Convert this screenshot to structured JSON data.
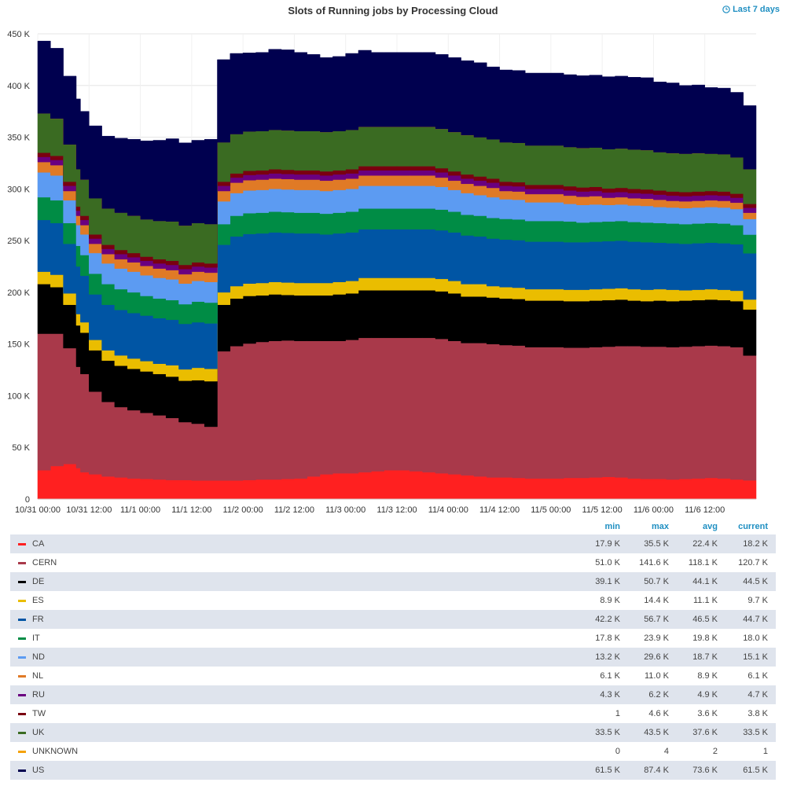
{
  "chart_data": {
    "type": "area",
    "stacked": true,
    "title": "Slots of Running jobs by Processing Cloud",
    "time_range_label": "Last 7 days",
    "x_ticks": [
      "10/31 00:00",
      "10/31 12:00",
      "11/1 00:00",
      "11/1 12:00",
      "11/2 00:00",
      "11/2 12:00",
      "11/3 00:00",
      "11/3 12:00",
      "11/4 00:00",
      "11/4 12:00",
      "11/5 00:00",
      "11/5 12:00",
      "11/6 00:00",
      "11/6 12:00"
    ],
    "y_ticks": [
      "0",
      "50 K",
      "100 K",
      "150 K",
      "200 K",
      "250 K",
      "300 K",
      "350 K",
      "400 K",
      "450 K"
    ],
    "ylim": [
      0,
      450000
    ],
    "grid": true,
    "legend_placement": "bottom-table",
    "x_hours": [
      0,
      3,
      6,
      9,
      10,
      12,
      15,
      18,
      21,
      24,
      27,
      30,
      33,
      36,
      39,
      42,
      45,
      48,
      51,
      54,
      57,
      60,
      63,
      66,
      69,
      72,
      75,
      78,
      81,
      84,
      87,
      90,
      93,
      96,
      99,
      102,
      105,
      108,
      111,
      114,
      117,
      120,
      123,
      126,
      129,
      132,
      135,
      138,
      141,
      144,
      147,
      150,
      153,
      156,
      159,
      162,
      165
    ],
    "series": [
      {
        "name": "CA",
        "color": "#ff2020",
        "values": [
          28000,
          32000,
          34000,
          30000,
          26000,
          24000,
          22000,
          21000,
          20000,
          19500,
          19000,
          18500,
          18500,
          18000,
          18000,
          18000,
          18000,
          18500,
          19000,
          19000,
          19500,
          20000,
          22000,
          24000,
          25000,
          25000,
          26000,
          27000,
          28000,
          28000,
          27000,
          26000,
          25000,
          24000,
          23000,
          22000,
          21000,
          21000,
          20500,
          20000,
          20000,
          20000,
          20500,
          20500,
          21000,
          21500,
          21000,
          20000,
          19500,
          19500,
          19000,
          19500,
          20000,
          20500,
          20000,
          19000,
          18200
        ]
      },
      {
        "name": "CERN",
        "color": "#a9394a",
        "values": [
          132000,
          128000,
          112000,
          98000,
          95000,
          80000,
          72000,
          68000,
          66000,
          64000,
          62000,
          60000,
          56000,
          55000,
          52000,
          125000,
          130000,
          132000,
          133000,
          134000,
          134000,
          133000,
          131000,
          129000,
          128000,
          129000,
          130000,
          129000,
          128000,
          128000,
          129000,
          130000,
          130000,
          129000,
          128000,
          129000,
          129000,
          128000,
          128000,
          127000,
          127000,
          127000,
          126000,
          126000,
          126000,
          126000,
          127000,
          128000,
          128000,
          128000,
          128000,
          128000,
          128000,
          128000,
          128000,
          128000,
          120700
        ]
      },
      {
        "name": "DE",
        "color": "#000000",
        "values": [
          48000,
          45000,
          42000,
          40000,
          40000,
          40000,
          40000,
          40000,
          40000,
          40000,
          40000,
          40000,
          40000,
          42000,
          44000,
          45000,
          46000,
          46000,
          45000,
          45000,
          44000,
          44000,
          44000,
          44000,
          45000,
          45000,
          46000,
          46000,
          46000,
          46000,
          46000,
          46000,
          46000,
          46000,
          45000,
          45000,
          45000,
          45000,
          45000,
          45000,
          45000,
          45000,
          45000,
          45000,
          45000,
          45000,
          45000,
          44000,
          44000,
          44500,
          44500,
          44500,
          44500,
          44500,
          44500,
          44500,
          44500
        ]
      },
      {
        "name": "ES",
        "color": "#eabd00",
        "values": [
          12000,
          12000,
          11000,
          11000,
          10000,
          10000,
          10000,
          10000,
          10000,
          10000,
          10000,
          11000,
          11000,
          12000,
          12000,
          12000,
          12000,
          12000,
          12000,
          12000,
          12000,
          12000,
          12000,
          12000,
          12000,
          12000,
          12000,
          12000,
          12000,
          12000,
          12000,
          12000,
          12000,
          12000,
          12000,
          12000,
          11000,
          11000,
          11000,
          11000,
          11000,
          11000,
          11000,
          11000,
          11000,
          11000,
          11000,
          11000,
          11000,
          11000,
          11000,
          10000,
          10000,
          10000,
          10000,
          10000,
          9700
        ]
      },
      {
        "name": "FR",
        "color": "#0055a4",
        "values": [
          50000,
          50000,
          48000,
          46000,
          45000,
          44000,
          44000,
          44000,
          44000,
          44000,
          44000,
          44000,
          44000,
          44000,
          44000,
          46000,
          48000,
          48000,
          48000,
          48000,
          48000,
          48000,
          48000,
          47000,
          47000,
          47000,
          47000,
          47000,
          47000,
          47000,
          47000,
          47000,
          47000,
          47000,
          47000,
          46000,
          46000,
          46000,
          46000,
          46000,
          46000,
          46000,
          46000,
          46000,
          46000,
          46000,
          46000,
          46000,
          46000,
          45000,
          45000,
          45000,
          45000,
          45000,
          45000,
          45000,
          44700
        ]
      },
      {
        "name": "IT",
        "color": "#008c45",
        "values": [
          22000,
          22000,
          20000,
          20000,
          20000,
          20000,
          20000,
          20000,
          20000,
          19000,
          19000,
          19000,
          19000,
          20000,
          20000,
          20000,
          20000,
          20000,
          20000,
          20000,
          20000,
          20000,
          20000,
          20000,
          20000,
          20000,
          20000,
          20000,
          20000,
          20000,
          20000,
          20000,
          20000,
          20000,
          20000,
          20000,
          20000,
          20000,
          20000,
          20000,
          20000,
          20000,
          20000,
          19000,
          19000,
          19000,
          19000,
          19000,
          19000,
          19000,
          19000,
          19000,
          19000,
          19000,
          19000,
          18500,
          18000
        ]
      },
      {
        "name": "ND",
        "color": "#5c9bf2",
        "values": [
          24000,
          24000,
          22000,
          20000,
          20000,
          20000,
          20000,
          20000,
          20000,
          20000,
          20000,
          20000,
          20000,
          20000,
          20000,
          22000,
          22000,
          22000,
          22000,
          22000,
          22000,
          22000,
          22000,
          22000,
          22000,
          22000,
          22000,
          22000,
          22000,
          22000,
          22000,
          22000,
          22000,
          21000,
          21000,
          20000,
          20000,
          19000,
          19000,
          18000,
          18000,
          18000,
          17000,
          17000,
          17000,
          16000,
          16000,
          16000,
          16000,
          15500,
          15500,
          15500,
          15500,
          15500,
          15500,
          15500,
          15100
        ]
      },
      {
        "name": "NL",
        "color": "#e07a26",
        "values": [
          10000,
          10000,
          9000,
          9000,
          9000,
          9000,
          9000,
          9000,
          9000,
          9000,
          9000,
          9000,
          9000,
          9000,
          9000,
          10000,
          10000,
          10000,
          10000,
          10000,
          10000,
          10000,
          10000,
          10000,
          10000,
          10000,
          10000,
          10000,
          10000,
          10000,
          10000,
          10000,
          9000,
          9000,
          9000,
          9000,
          9000,
          8000,
          8000,
          8000,
          8000,
          8000,
          8000,
          8000,
          8000,
          7000,
          7000,
          7000,
          7000,
          7000,
          6500,
          6500,
          6500,
          6500,
          6500,
          6200,
          6100
        ]
      },
      {
        "name": "RU",
        "color": "#6a0080",
        "values": [
          5000,
          5000,
          5000,
          5000,
          5000,
          5000,
          5000,
          5000,
          5000,
          5000,
          5000,
          5000,
          5000,
          5000,
          5000,
          5000,
          5000,
          5000,
          5000,
          5000,
          5000,
          5000,
          5000,
          5000,
          5000,
          5000,
          5000,
          5000,
          5000,
          5000,
          5000,
          5000,
          5000,
          5000,
          5000,
          5000,
          5000,
          5000,
          5000,
          5000,
          5000,
          5000,
          5000,
          5000,
          5000,
          5000,
          5000,
          5000,
          5000,
          5000,
          5000,
          5000,
          5000,
          5000,
          5000,
          4800,
          4700
        ]
      },
      {
        "name": "TW",
        "color": "#7a0010",
        "values": [
          4000,
          4000,
          4000,
          4000,
          4000,
          4000,
          4000,
          4000,
          4000,
          4000,
          4000,
          4000,
          4000,
          4000,
          4000,
          4000,
          4000,
          4000,
          4000,
          4000,
          4000,
          4000,
          4000,
          4000,
          4000,
          4000,
          4000,
          4000,
          4000,
          4000,
          4000,
          4000,
          4000,
          4000,
          4000,
          4000,
          4000,
          4000,
          4000,
          4000,
          4000,
          4000,
          4000,
          4000,
          4000,
          4000,
          4000,
          4000,
          4000,
          4000,
          4000,
          4000,
          4000,
          4000,
          4000,
          3900,
          3800
        ]
      },
      {
        "name": "UK",
        "color": "#3a6b22",
        "values": [
          38000,
          36000,
          36000,
          36000,
          35000,
          35000,
          35000,
          36000,
          36000,
          36000,
          37000,
          38000,
          38000,
          38000,
          38000,
          38000,
          38000,
          38000,
          38000,
          38000,
          38000,
          38000,
          38000,
          38000,
          38000,
          38000,
          38000,
          38000,
          38000,
          38000,
          38000,
          38000,
          38000,
          38000,
          38000,
          38000,
          38000,
          38000,
          38000,
          38000,
          38000,
          38000,
          38000,
          38000,
          38000,
          38000,
          38000,
          38000,
          38000,
          37000,
          37000,
          37000,
          37000,
          36000,
          36000,
          35000,
          33500
        ]
      },
      {
        "name": "UNKNOWN",
        "color": "#f5a20a",
        "values": [
          2,
          2,
          2,
          2,
          2,
          2,
          2,
          2,
          2,
          2,
          2,
          2,
          2,
          2,
          2,
          2,
          2,
          2,
          2,
          2,
          2,
          2,
          2,
          2,
          2,
          2,
          2,
          2,
          2,
          2,
          2,
          2,
          2,
          2,
          2,
          2,
          2,
          2,
          2,
          2,
          2,
          2,
          2,
          2,
          2,
          2,
          2,
          2,
          2,
          2,
          2,
          2,
          2,
          2,
          2,
          2,
          1
        ]
      },
      {
        "name": "US",
        "color": "#00004f",
        "values": [
          70000,
          68000,
          66000,
          68000,
          66000,
          70000,
          70000,
          72000,
          74000,
          76000,
          78000,
          80000,
          80000,
          80000,
          82000,
          80000,
          78000,
          76000,
          76000,
          78000,
          78000,
          76000,
          74000,
          72000,
          72000,
          74000,
          74000,
          72000,
          72000,
          72000,
          72000,
          72000,
          72000,
          72000,
          72000,
          72000,
          70000,
          70000,
          70000,
          70000,
          70000,
          70000,
          70000,
          70000,
          70000,
          70000,
          70000,
          70000,
          70000,
          68000,
          68000,
          66000,
          66000,
          64000,
          64000,
          63000,
          61500
        ]
      }
    ],
    "legend_table": {
      "headers": [
        "min",
        "max",
        "avg",
        "current"
      ],
      "rows": [
        {
          "name": "CA",
          "color": "#ff2020",
          "min": "17.9 K",
          "max": "35.5 K",
          "avg": "22.4 K",
          "current": "18.2 K"
        },
        {
          "name": "CERN",
          "color": "#a9394a",
          "min": "51.0 K",
          "max": "141.6 K",
          "avg": "118.1 K",
          "current": "120.7 K"
        },
        {
          "name": "DE",
          "color": "#000000",
          "min": "39.1 K",
          "max": "50.7 K",
          "avg": "44.1 K",
          "current": "44.5 K"
        },
        {
          "name": "ES",
          "color": "#eabd00",
          "min": "8.9 K",
          "max": "14.4 K",
          "avg": "11.1 K",
          "current": "9.7 K"
        },
        {
          "name": "FR",
          "color": "#0055a4",
          "min": "42.2 K",
          "max": "56.7 K",
          "avg": "46.5 K",
          "current": "44.7 K"
        },
        {
          "name": "IT",
          "color": "#008c45",
          "min": "17.8 K",
          "max": "23.9 K",
          "avg": "19.8 K",
          "current": "18.0 K"
        },
        {
          "name": "ND",
          "color": "#5c9bf2",
          "min": "13.2 K",
          "max": "29.6 K",
          "avg": "18.7 K",
          "current": "15.1 K"
        },
        {
          "name": "NL",
          "color": "#e07a26",
          "min": "6.1 K",
          "max": "11.0 K",
          "avg": "8.9 K",
          "current": "6.1 K"
        },
        {
          "name": "RU",
          "color": "#6a0080",
          "min": "4.3 K",
          "max": "6.2 K",
          "avg": "4.9 K",
          "current": "4.7 K"
        },
        {
          "name": "TW",
          "color": "#7a0010",
          "min": "1",
          "max": "4.6 K",
          "avg": "3.6 K",
          "current": "3.8 K"
        },
        {
          "name": "UK",
          "color": "#3a6b22",
          "min": "33.5 K",
          "max": "43.5 K",
          "avg": "37.6 K",
          "current": "33.5 K"
        },
        {
          "name": "UNKNOWN",
          "color": "#f5a20a",
          "min": "0",
          "max": "4",
          "avg": "2",
          "current": "1"
        },
        {
          "name": "US",
          "color": "#00004f",
          "min": "61.5 K",
          "max": "87.4 K",
          "avg": "73.6 K",
          "current": "61.5 K"
        }
      ]
    }
  }
}
